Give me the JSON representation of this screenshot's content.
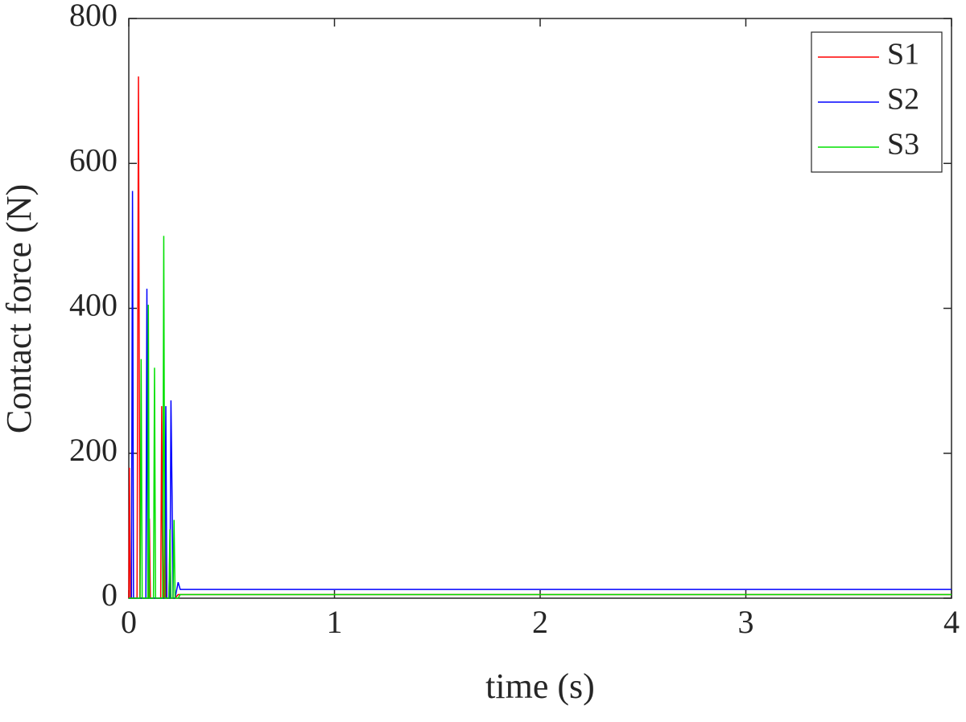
{
  "chart_data": {
    "type": "line",
    "xlabel": "time (s)",
    "ylabel": "Contact force (N)",
    "x": [
      0,
      0.003,
      0.008,
      0.013,
      0.018,
      0.023,
      0.04,
      0.047,
      0.054,
      0.055,
      0.06,
      0.065,
      0.083,
      0.088,
      0.093,
      0.095,
      0.1,
      0.105,
      0.12,
      0.125,
      0.13,
      0.155,
      0.16,
      0.165,
      0.17,
      0.175,
      0.18,
      0.185,
      0.195,
      0.2,
      0.205,
      0.21,
      0.215,
      0.22,
      0.225,
      0.24,
      0.25,
      4
    ],
    "series": [
      {
        "name": "S1",
        "color": "#ff0000",
        "values": [
          0,
          180,
          0,
          0,
          0,
          0,
          0,
          720,
          0,
          0,
          0,
          0,
          0,
          0,
          0,
          0,
          110,
          0,
          0,
          0,
          0,
          0,
          265,
          0,
          0,
          148,
          0,
          0,
          0,
          80,
          0,
          0,
          0,
          0,
          0,
          5,
          5,
          5
        ]
      },
      {
        "name": "S2",
        "color": "#0000ff",
        "values": [
          0,
          0,
          0,
          0,
          562,
          0,
          0,
          0,
          0,
          0,
          0,
          0,
          0,
          427,
          0,
          0,
          0,
          0,
          0,
          0,
          0,
          0,
          0,
          0,
          0,
          0,
          265,
          0,
          0,
          0,
          273,
          150,
          0,
          0,
          0,
          22,
          12,
          12
        ]
      },
      {
        "name": "S3",
        "color": "#00e000",
        "values": [
          0,
          0,
          0,
          0,
          0,
          0,
          0,
          0,
          0,
          0,
          330,
          0,
          0,
          0,
          0,
          405,
          0,
          0,
          0,
          318,
          0,
          0,
          0,
          0,
          500,
          0,
          0,
          0,
          0,
          95,
          0,
          0,
          0,
          108,
          0,
          0,
          5,
          5
        ]
      }
    ],
    "xlim": [
      0,
      4
    ],
    "xticks": [
      0,
      1,
      2,
      3,
      4
    ],
    "ylim": [
      0,
      800
    ],
    "yticks": [
      0,
      200,
      400,
      600,
      800
    ],
    "grid": false,
    "legend": "top-right"
  }
}
